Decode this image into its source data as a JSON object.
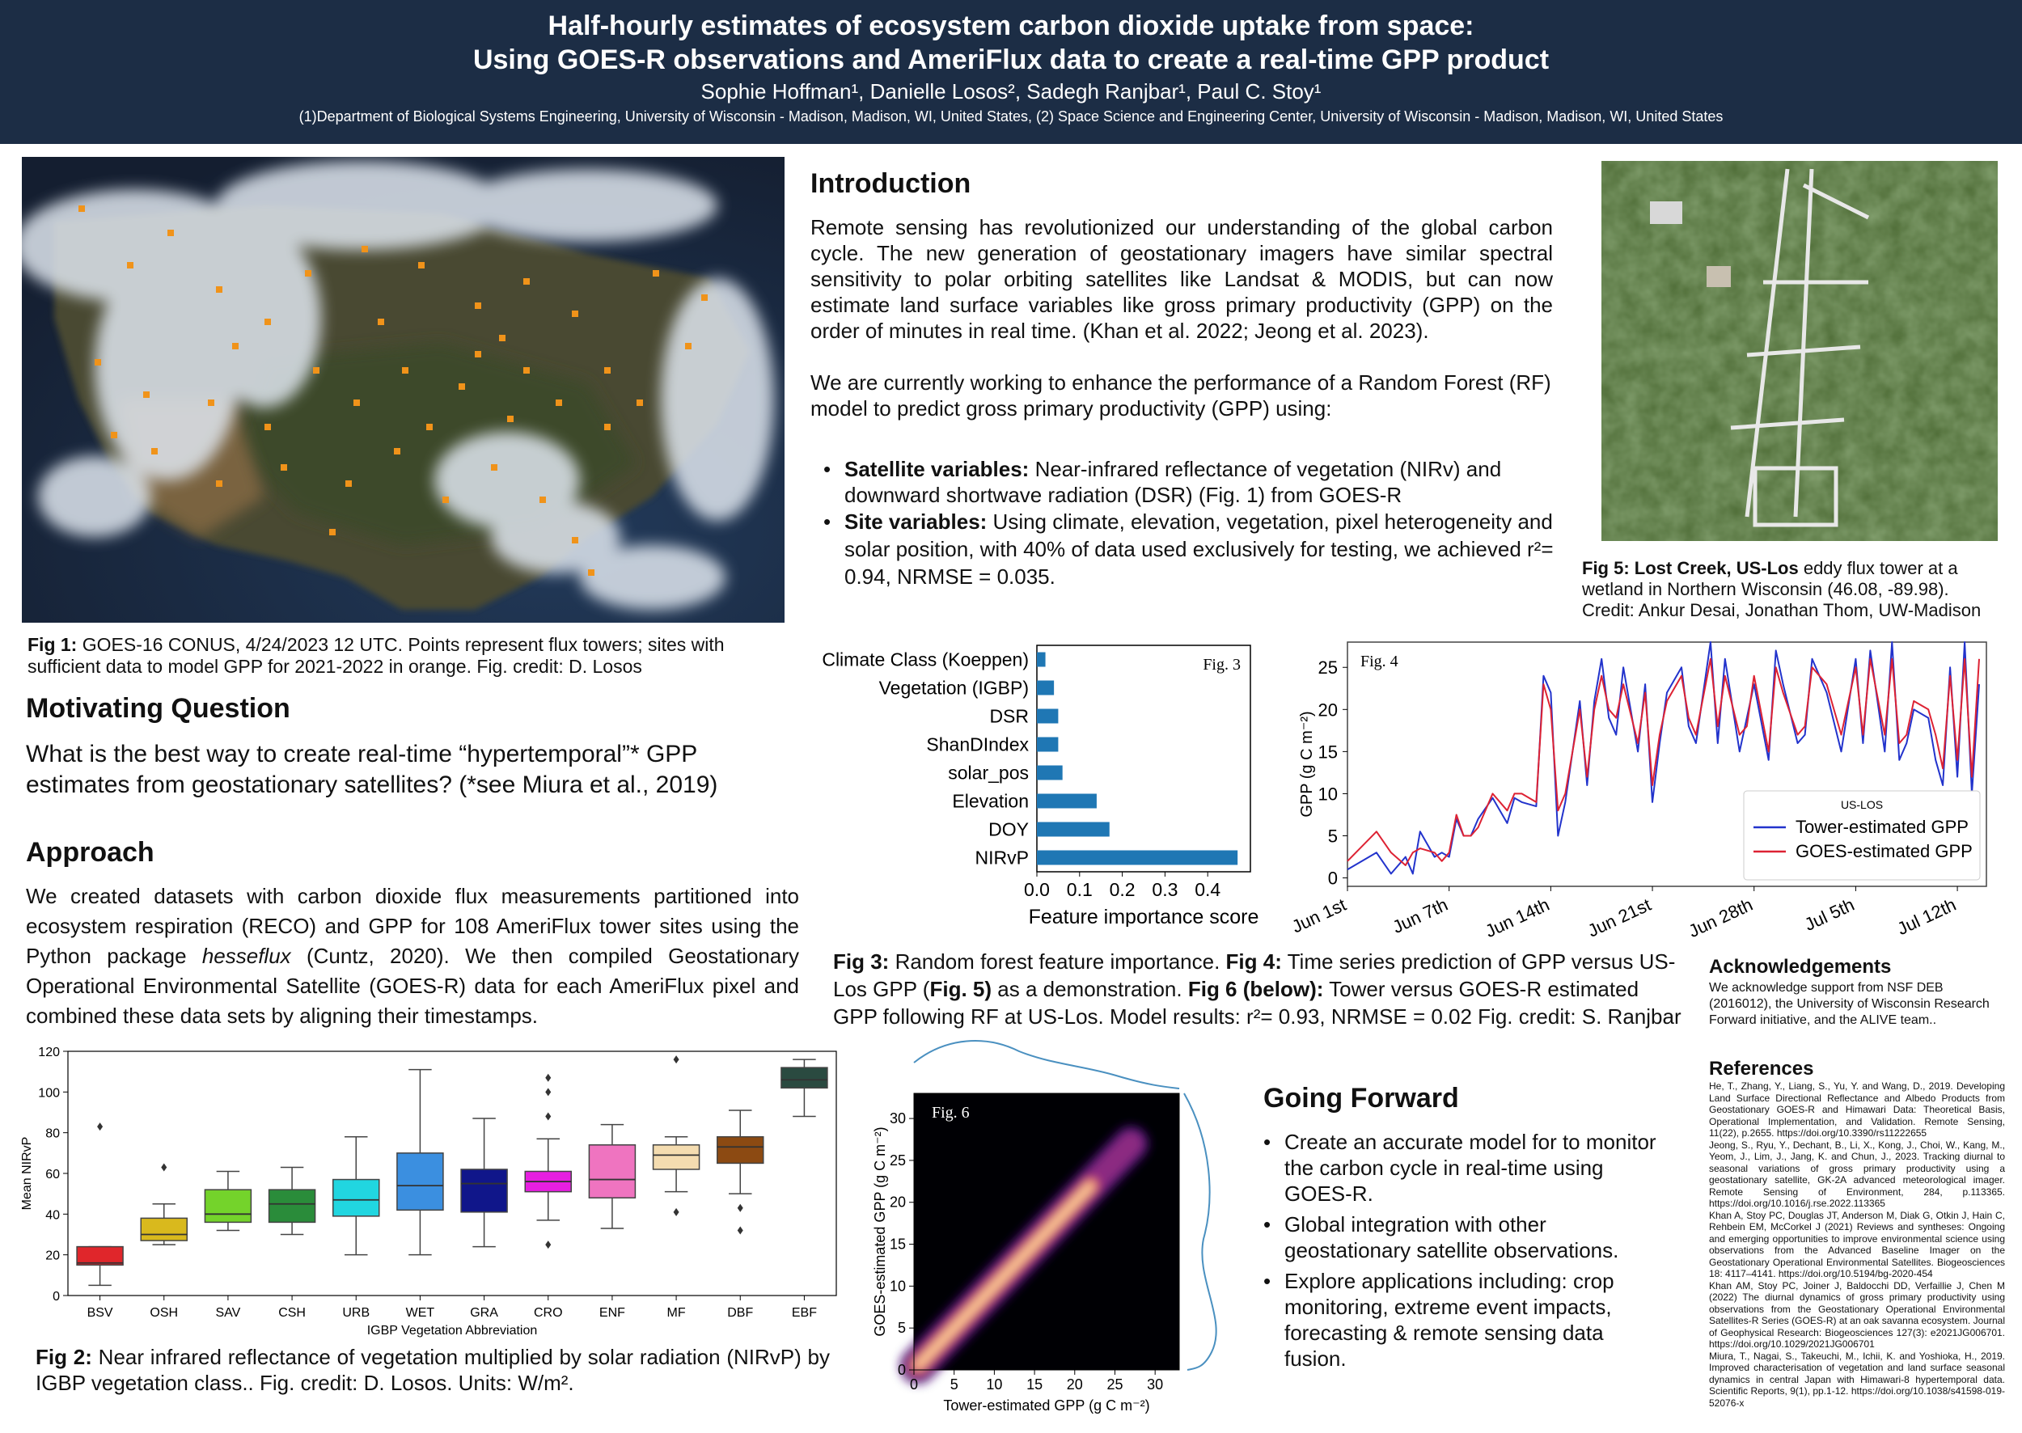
{
  "header": {
    "title_line1": "Half-hourly estimates of ecosystem carbon dioxide uptake from space:",
    "title_line2": "Using GOES-R observations and AmeriFlux data to create a real-time GPP product",
    "authors": "Sophie Hoffman¹, Danielle Losos², Sadegh Ranjbar¹, Paul C. Stoy¹",
    "affiliations": "(1)Department of Biological Systems Engineering, University of Wisconsin - Madison, Madison, WI, United States, (2) Space Science and Engineering Center, University of Wisconsin - Madison, Madison, WI, United States"
  },
  "fig1": {
    "caption_label": "Fig 1:",
    "caption_text": " GOES-16 CONUS, 4/24/2023 12 UTC. Points represent flux towers; sites with sufficient data to model GPP for 2021-2022 in orange. Fig. credit: D. Losos"
  },
  "motivating": {
    "heading": "Motivating Question",
    "text": "What is the best way to create real-time “hypertemporal”* GPP estimates from geostationary satellites? (*see Miura et al., 2019)"
  },
  "approach": {
    "heading": "Approach",
    "text_before": "We created datasets with carbon dioxide flux measurements partitioned into ecosystem respiration (RECO) and GPP for 108 AmeriFlux tower sites using the Python package ",
    "package": "hesseflux",
    "text_after": " (Cuntz, 2020). We then compiled Geostationary Operational Environmental Satellite (GOES-R) data for each AmeriFlux pixel and combined these data sets by aligning their timestamps."
  },
  "introduction": {
    "heading": "Introduction",
    "para1": "Remote sensing has revolutionized our understanding of the global carbon cycle. The new generation of geostationary imagers have similar spectral sensitivity to polar orbiting satellites like Landsat & MODIS, but can now estimate land surface variables like gross primary productivity (GPP) on the order of minutes in real time. (Khan et al. 2022; Jeong et al. 2023).",
    "para2": "We are currently working to enhance the performance of a Random Forest (RF) model to predict gross primary productivity (GPP) using:",
    "bullet1_label": "Satellite variables:",
    "bullet1_text": " Near-infrared reflectance of vegetation (NIRv) and downward shortwave radiation (DSR) (Fig. 1)  from GOES-R",
    "bullet2_label": "Site variables:",
    "bullet2_text": " Using climate, elevation, vegetation, pixel heterogeneity and solar position, with 40% of data used exclusively for testing, we achieved r²= 0.94, NRMSE = 0.035."
  },
  "fig5": {
    "caption_label": "Fig 5:  Lost Creek, US-Los",
    "caption_text": " eddy flux tower at a wetland in Northern Wisconsin (46.08, -89.98). Credit: Ankur Desai, Jonathan Thom, UW-Madison"
  },
  "fig34_caption": {
    "fig3_label": "Fig 3:",
    "fig3_text": " Random forest feature importance.  ",
    "fig4_label": "Fig 4:",
    "fig4_text": " Time series prediction of GPP versus US-Los GPP (",
    "fig5_ref": "Fig. 5)",
    "mid_text": " as a demonstration.  ",
    "fig6_label": "Fig 6 (below):",
    "fig6_text": " Tower versus GOES-R estimated GPP following RF at US-Los. Model results: r²= 0.93, NRMSE = 0.02 Fig. credit: S. Ranjbar"
  },
  "fig2": {
    "caption_label": "Fig 2:",
    "caption_text": " Near infrared reflectance of vegetation multiplied by solar radiation (NIRvP) by IGBP vegetation class.. Fig. credit: D. Losos. Units: W/m²."
  },
  "going_forward": {
    "heading": "Going Forward",
    "items": [
      "Create an accurate model for to monitor the carbon cycle  in real-time using GOES-R.",
      "Global integration with other geostationary satellite observations.",
      "Explore applications including: crop monitoring, extreme event impacts, forecasting & remote sensing data fusion."
    ]
  },
  "acknowledgements": {
    "heading": "Acknowledgements",
    "text": "We acknowledge support from NSF  DEB (2016012), the University of Wisconsin Research Forward initiative, and the ALIVE team.."
  },
  "references": {
    "heading": "References",
    "items": [
      "He, T., Zhang, Y., Liang, S., Yu, Y. and Wang, D., 2019. Developing Land Surface Directional Reflectance and Albedo Products from Geostationary GOES-R and Himawari Data: Theoretical Basis, Operational Implementation, and Validation. Remote Sensing, 11(22), p.2655. https://doi.org/10.3390/rs11222655",
      "Jeong, S., Ryu, Y., Dechant, B., Li, X., Kong, J., Choi, W., Kang, M., Yeom, J., Lim, J., Jang, K. and Chun, J., 2023. Tracking diurnal to seasonal variations of gross primary productivity using a geostationary satellite, GK-2A advanced meteorological imager. Remote Sensing of Environment, 284, p.113365. https://doi.org/10.1016/j.rse.2022.113365",
      "Khan A, Stoy PC, Douglas JT, Anderson M, Diak G, Otkin J, Hain C, Rehbein EM, McCorkel J (2021) Reviews and syntheses: Ongoing and emerging opportunities to improve environmental science using observations from the Advanced Baseline Imager on the Geostationary Operational Environmental Satellites. Biogeosciences 18: 4117–4141. https://doi.org/10.5194/bg-2020-454",
      "Khan AM, Stoy PC, Joiner J, Baldocchi DD, Verfaillie J, Chen M (2022) The diurnal dynamics of gross primary productivity using observations from the Geostationary Operational Environmental Satellites-R Series (GOES-R) at an oak savanna ecosystem. Journal of Geophysical Research: Biogeosciences 127(3): e2021JG006701. https://doi.org/10.1029/2021JG006701",
      "Miura, T., Nagai, S., Takeuchi, M., Ichii, K. and Yoshioka, H., 2019. Improved characterisation of vegetation and land surface seasonal dynamics in central Japan with Himawari-8 hypertemporal data. Scientific Reports, 9(1), pp.1-12. https://doi.org/10.1038/s41598-019-52076-x"
    ]
  },
  "colors": {
    "header_bg": "#1c2d45",
    "bar": "#1f77b4",
    "tower_line": "#2233cc",
    "goes_line": "#dd2233",
    "kde_dark": "#000004",
    "marginal": "#4a90c0"
  },
  "chart_data": [
    {
      "type": "bar",
      "orientation": "horizontal",
      "panel_label": "Fig. 3",
      "categories": [
        "Climate Class (Koeppen)",
        "Vegetation (IGBP)",
        "DSR",
        "ShanDIndex",
        "solar_pos",
        "Elevation",
        "DOY",
        "NIRvP"
      ],
      "values": [
        0.02,
        0.04,
        0.05,
        0.05,
        0.06,
        0.14,
        0.17,
        0.47
      ],
      "xlabel": "Feature importance score",
      "xticks": [
        0.0,
        0.1,
        0.2,
        0.3,
        0.4
      ],
      "xlim": [
        0,
        0.5
      ]
    },
    {
      "type": "line",
      "panel_label": "Fig. 4",
      "ylabel": "GPP (g C m⁻²)",
      "ylim": [
        -1,
        28
      ],
      "yticks": [
        0,
        5,
        10,
        15,
        20,
        25
      ],
      "xticks": [
        "Jun 1st",
        "Jun 7th",
        "Jun 14th",
        "Jun 21st",
        "Jun 28th",
        "Jul 5th",
        "Jul 12th"
      ],
      "xlim_days": [
        0,
        44
      ],
      "legend_title": "US-LOS",
      "legend_position": "lower-right",
      "x": [
        0,
        2,
        3,
        4,
        4.5,
        5,
        6,
        6.5,
        7,
        7.5,
        8,
        8.5,
        9,
        10,
        11,
        11.5,
        12,
        13,
        13.5,
        14,
        14.5,
        15,
        16,
        16.5,
        17,
        17.5,
        18,
        18.5,
        19,
        20,
        20.5,
        21,
        21.5,
        22,
        23,
        23.5,
        24,
        25,
        25.5,
        26,
        27,
        27.5,
        28,
        29,
        29.5,
        30,
        31,
        31.5,
        32,
        33,
        34,
        35,
        35.5,
        36,
        37,
        37.5,
        38,
        38.5,
        39,
        40,
        40.5,
        41,
        41.5,
        42,
        42.5,
        43,
        43.5
      ],
      "series": [
        {
          "name": "Tower-estimated GPP",
          "values": [
            1,
            3,
            0.5,
            2.5,
            0.5,
            5.5,
            2.5,
            3,
            2.5,
            7,
            5,
            5,
            7,
            9.5,
            6.5,
            9.5,
            9,
            8.5,
            24,
            22,
            5,
            9,
            21,
            11,
            21,
            26,
            19,
            17,
            25,
            15,
            23,
            9,
            16,
            22,
            25,
            18,
            16,
            28,
            16,
            26,
            15,
            19,
            23,
            14,
            27,
            23,
            16,
            17,
            26,
            22,
            15,
            26,
            16,
            27,
            15,
            28,
            14,
            16,
            20,
            19,
            14,
            11,
            25,
            12,
            28,
            10,
            23
          ]
        },
        {
          "name": "GOES-estimated GPP",
          "values": [
            2,
            5.5,
            3,
            1.5,
            3,
            3.5,
            3,
            2,
            3,
            7.5,
            5,
            5,
            6,
            10,
            8,
            10,
            10,
            9,
            23,
            20,
            8,
            10,
            20,
            12,
            20,
            24,
            20,
            19,
            23,
            16,
            22,
            11,
            17,
            21,
            24,
            19,
            17,
            26,
            18,
            24,
            17,
            18,
            24,
            15,
            25,
            22,
            17,
            18,
            25,
            23,
            17,
            25,
            17,
            26,
            17,
            26,
            16,
            17,
            21,
            20,
            17,
            13,
            24,
            14,
            26,
            12,
            26
          ]
        }
      ]
    },
    {
      "type": "heatmap",
      "subtype": "kde-density",
      "panel_label": "Fig. 6",
      "xlabel": "Tower-estimated GPP (g C m⁻²)",
      "ylabel": "GOES-estimated GPP (g C m⁻²)",
      "xticks": [
        0,
        5,
        10,
        15,
        20,
        25,
        30
      ],
      "yticks": [
        0,
        5,
        10,
        15,
        20,
        25,
        30
      ],
      "xlim": [
        0,
        33
      ],
      "ylim": [
        0,
        33
      ]
    },
    {
      "type": "box",
      "panel_label": "Fig. 2",
      "xlabel": "IGBP Vegetation Abbreviation",
      "ylabel": "Mean NIRvP",
      "ylim": [
        0,
        120
      ],
      "yticks": [
        0,
        20,
        40,
        60,
        80,
        100,
        120
      ],
      "categories": [
        "BSV",
        "OSH",
        "SAV",
        "CSH",
        "URB",
        "WET",
        "GRA",
        "CRO",
        "ENF",
        "MF",
        "DBF",
        "EBF"
      ],
      "colors": [
        "#e0262b",
        "#d9b91d",
        "#74d32b",
        "#2a8c3a",
        "#21d6e0",
        "#3b8fe0",
        "#10168a",
        "#e61fe0",
        "#ef74c0",
        "#f4dcb0",
        "#8c4a12",
        "#2a4a40"
      ],
      "boxes": [
        {
          "q1": 15,
          "median": 16,
          "q3": 24,
          "lo": 5,
          "hi": 24,
          "outliers": [
            83
          ]
        },
        {
          "q1": 27,
          "median": 30,
          "q3": 38,
          "lo": 25,
          "hi": 45,
          "outliers": [
            63
          ]
        },
        {
          "q1": 36,
          "median": 40,
          "q3": 52,
          "lo": 32,
          "hi": 61,
          "outliers": []
        },
        {
          "q1": 36,
          "median": 45,
          "q3": 52,
          "lo": 30,
          "hi": 63,
          "outliers": []
        },
        {
          "q1": 39,
          "median": 47,
          "q3": 57,
          "lo": 20,
          "hi": 78,
          "outliers": []
        },
        {
          "q1": 42,
          "median": 54,
          "q3": 70,
          "lo": 20,
          "hi": 111,
          "outliers": []
        },
        {
          "q1": 41,
          "median": 55,
          "q3": 62,
          "lo": 24,
          "hi": 87,
          "outliers": []
        },
        {
          "q1": 51,
          "median": 56,
          "q3": 61,
          "lo": 37,
          "hi": 77,
          "outliers": [
            107,
            100,
            88,
            25
          ]
        },
        {
          "q1": 48,
          "median": 57,
          "q3": 74,
          "lo": 33,
          "hi": 84,
          "outliers": []
        },
        {
          "q1": 62,
          "median": 69,
          "q3": 74,
          "lo": 51,
          "hi": 78,
          "outliers": [
            116,
            41
          ]
        },
        {
          "q1": 65,
          "median": 73,
          "q3": 78,
          "lo": 50,
          "hi": 91,
          "outliers": [
            43,
            32
          ]
        },
        {
          "q1": 102,
          "median": 106,
          "q3": 112,
          "lo": 88,
          "hi": 116,
          "outliers": []
        }
      ]
    }
  ]
}
